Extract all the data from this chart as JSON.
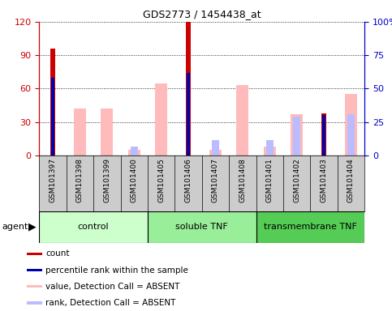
{
  "title": "GDS2773 / 1454438_at",
  "samples": [
    "GSM101397",
    "GSM101398",
    "GSM101399",
    "GSM101400",
    "GSM101405",
    "GSM101406",
    "GSM101407",
    "GSM101408",
    "GSM101401",
    "GSM101402",
    "GSM101403",
    "GSM101404"
  ],
  "groups": [
    {
      "label": "control",
      "start": 0,
      "end": 4,
      "color": "#ccffcc"
    },
    {
      "label": "soluble TNF",
      "start": 4,
      "end": 8,
      "color": "#99ee99"
    },
    {
      "label": "transmembrane TNF",
      "start": 8,
      "end": 12,
      "color": "#55cc55"
    }
  ],
  "count": [
    96,
    0,
    0,
    0,
    0,
    120,
    0,
    0,
    0,
    0,
    38,
    0
  ],
  "percentile_rank": [
    58,
    0,
    0,
    0,
    0,
    62,
    0,
    0,
    0,
    0,
    30,
    0
  ],
  "value_absent": [
    0,
    42,
    42,
    5,
    65,
    0,
    5,
    63,
    8,
    37,
    0,
    55
  ],
  "rank_absent": [
    0,
    0,
    0,
    8,
    0,
    0,
    14,
    0,
    14,
    35,
    0,
    37
  ],
  "ylim_left": [
    0,
    120
  ],
  "ylim_right": [
    0,
    100
  ],
  "yticks_left": [
    0,
    30,
    60,
    90,
    120
  ],
  "yticks_right": [
    0,
    25,
    50,
    75,
    100
  ],
  "ytick_labels_right": [
    "0",
    "25",
    "50",
    "75",
    "100%"
  ],
  "colors": {
    "count": "#cc0000",
    "percentile_rank": "#0000aa",
    "value_absent": "#ffbbbb",
    "rank_absent": "#bbbbff",
    "axis_left": "#cc0000",
    "axis_right": "#0000cc",
    "xlabel_bg": "#cccccc",
    "group_border": "#000000"
  },
  "legend_items": [
    {
      "color": "#cc0000",
      "label": "count"
    },
    {
      "color": "#0000aa",
      "label": "percentile rank within the sample"
    },
    {
      "color": "#ffbbbb",
      "label": "value, Detection Call = ABSENT"
    },
    {
      "color": "#bbbbff",
      "label": "rank, Detection Call = ABSENT"
    }
  ]
}
